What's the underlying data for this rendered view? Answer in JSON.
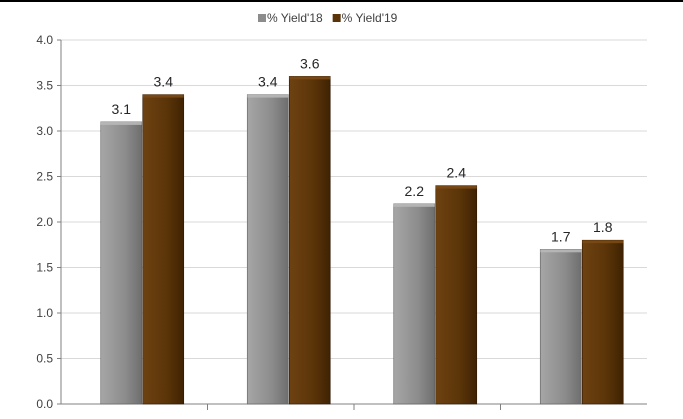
{
  "chart_data": {
    "type": "bar",
    "title": "",
    "xlabel": "",
    "ylabel": "",
    "categories": [
      "",
      "",
      "",
      ""
    ],
    "series": [
      {
        "name": "% Yield'18",
        "values": [
          3.1,
          3.4,
          2.2,
          1.7
        ],
        "color": "#8c8c8c"
      },
      {
        "name": "% Yield'19",
        "values": [
          3.4,
          3.6,
          2.4,
          1.8
        ],
        "color": "#5a3408"
      }
    ],
    "ylim": [
      0,
      4
    ],
    "yticks": [
      "0.0",
      "0.5",
      "1.0",
      "1.5",
      "2.0",
      "2.5",
      "3.0",
      "3.5",
      "4.0"
    ],
    "data_labels": [
      [
        "3.1",
        "3.4",
        "2.2",
        "1.7"
      ],
      [
        "3.4",
        "3.6",
        "2.4",
        "1.8"
      ]
    ],
    "legend_position": "top-center",
    "grid": true
  }
}
